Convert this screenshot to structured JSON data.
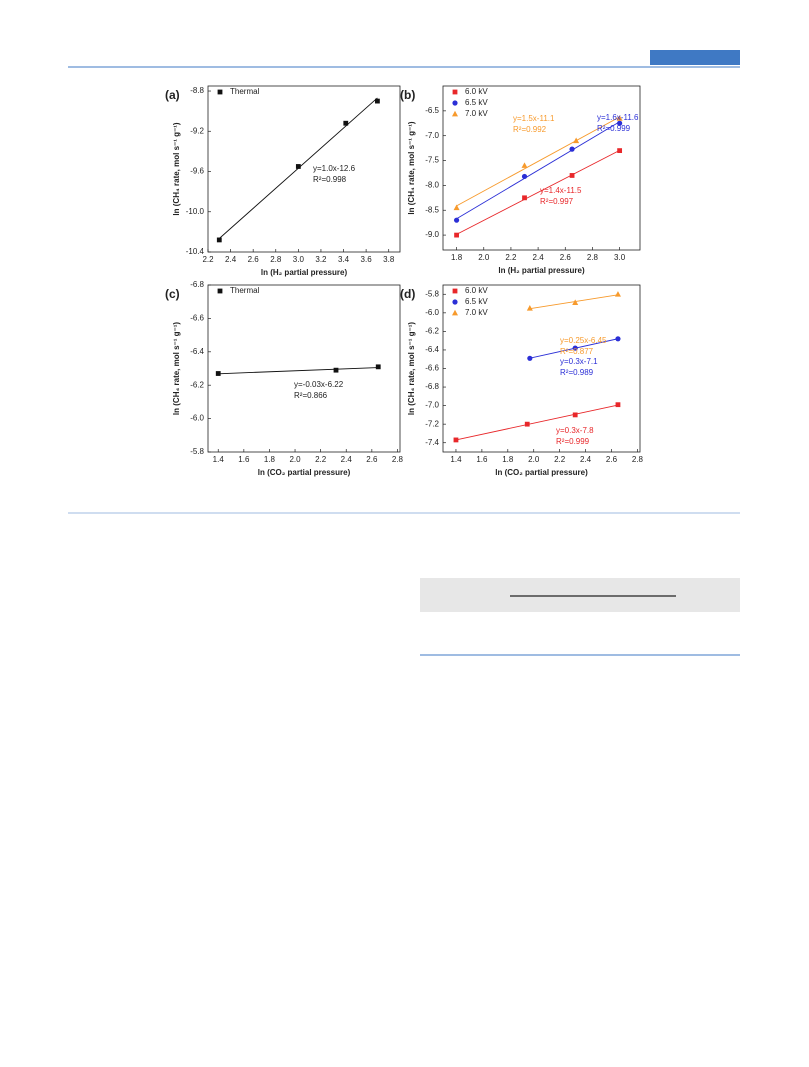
{
  "chart_data": [
    {
      "type": "scatter",
      "panel_label": "(a)",
      "xlabel": "ln (H₂ partial pressure)",
      "ylabel": "ln (CH₄ rate, mol s⁻¹ g⁻¹)",
      "xlim": [
        2.2,
        3.9
      ],
      "ylim": [
        -10.4,
        -8.75
      ],
      "xticks": [
        2.2,
        2.4,
        2.6,
        2.8,
        {
          "value": 3,
          "label": "3.0"
        },
        3.2,
        3.4,
        3.6,
        3.8
      ],
      "yticks": [
        -10.4,
        {
          "value": -10,
          "label": "-10.0"
        },
        -9.6,
        -9.2,
        -8.8
      ],
      "series": [
        {
          "name": "Thermal",
          "color": "#111111",
          "marker": "square",
          "x": [
            2.3,
            3.0,
            3.42,
            3.7
          ],
          "values": [
            -10.28,
            -9.55,
            -9.12,
            -8.9
          ]
        }
      ],
      "annotations": [
        {
          "lines": [
            "y=1.0x-12.6",
            "R²=0.998"
          ],
          "color": "#222222"
        }
      ]
    },
    {
      "type": "scatter",
      "panel_label": "(b)",
      "xlabel": "ln (H₂ partial pressure)",
      "ylabel": "ln (CH₄ rate, mol s⁻¹ g⁻¹)",
      "xlim": [
        1.7,
        3.15
      ],
      "ylim": [
        -9.3,
        -6.0
      ],
      "xticks": [
        1.8,
        {
          "value": 2,
          "label": "2.0"
        },
        2.2,
        2.4,
        2.6,
        2.8,
        {
          "value": 3,
          "label": "3.0"
        }
      ],
      "yticks": [
        {
          "value": -9,
          "label": "-9.0"
        },
        -8.5,
        {
          "value": -8,
          "label": "-8.0"
        },
        -7.5,
        {
          "value": -7,
          "label": "-7.0"
        },
        -6.5
      ],
      "series": [
        {
          "name": "6.0 kV",
          "color": "#e8272a",
          "marker": "square",
          "x": [
            1.8,
            2.3,
            2.65,
            3.0
          ],
          "values": [
            -9.0,
            -8.25,
            -7.8,
            -7.3
          ]
        },
        {
          "name": "6.5 kV",
          "color": "#2b2fd6",
          "marker": "circle",
          "x": [
            1.8,
            2.3,
            2.65,
            3.0
          ],
          "values": [
            -8.7,
            -7.82,
            -7.27,
            -6.75
          ]
        },
        {
          "name": "7.0 kV",
          "color": "#f79a2c",
          "marker": "triangle",
          "x": [
            1.8,
            2.3,
            2.68,
            3.0
          ],
          "values": [
            -8.45,
            -7.6,
            -7.1,
            -6.65
          ]
        }
      ],
      "annotations": [
        {
          "lines": [
            "y=1.4x-11.5",
            "R²=0.997"
          ],
          "color": "#e8272a"
        },
        {
          "lines": [
            "y=1.6x-11.6",
            "R²=0.999"
          ],
          "color": "#2b2fd6"
        },
        {
          "lines": [
            "y=1.5x-11.1",
            "R²=0.992"
          ],
          "color": "#f79a2c"
        }
      ]
    },
    {
      "type": "scatter",
      "panel_label": "(c)",
      "xlabel": "ln (CO₂ partial pressure)",
      "ylabel": "ln (CH₄ rate, mol s⁻¹ g⁻¹)",
      "xlim": [
        1.32,
        2.82
      ],
      "ylim": [
        -6.8,
        -5.8
      ],
      "y_inverted": true,
      "xticks": [
        1.4,
        1.6,
        1.8,
        {
          "value": 2,
          "label": "2.0"
        },
        2.2,
        2.4,
        2.6,
        2.8
      ],
      "yticks": [
        -6.8,
        -6.6,
        -6.4,
        -6.2,
        {
          "value": -6,
          "label": "-6.0"
        },
        -5.8
      ],
      "series": [
        {
          "name": "Thermal",
          "color": "#111111",
          "marker": "square",
          "x": [
            1.4,
            2.32,
            2.65
          ],
          "values": [
            -6.27,
            -6.29,
            -6.31
          ]
        }
      ],
      "annotations": [
        {
          "lines": [
            "y=-0.03x-6.22",
            "R²=0.866"
          ],
          "color": "#222222"
        }
      ]
    },
    {
      "type": "scatter",
      "panel_label": "(d)",
      "xlabel": "ln (CO₂ partial pressure)",
      "ylabel": "ln (CH₄ rate, mol s⁻¹ g⁻¹)",
      "xlim": [
        1.3,
        2.82
      ],
      "ylim": [
        -7.5,
        -5.7
      ],
      "xticks": [
        1.4,
        1.6,
        1.8,
        {
          "value": 2,
          "label": "2.0"
        },
        2.2,
        2.4,
        2.6,
        2.8
      ],
      "yticks": [
        -7.4,
        -7.2,
        {
          "value": -7,
          "label": "-7.0"
        },
        -6.8,
        -6.6,
        -6.4,
        -6.2,
        {
          "value": -6,
          "label": "-6.0"
        },
        -5.8
      ],
      "series": [
        {
          "name": "6.0 kV",
          "color": "#e8272a",
          "marker": "square",
          "x": [
            1.4,
            1.95,
            2.32,
            2.65
          ],
          "values": [
            -7.37,
            -7.2,
            -7.1,
            -6.99
          ]
        },
        {
          "name": "6.5 kV",
          "color": "#2b2fd6",
          "marker": "circle",
          "x": [
            1.97,
            2.32,
            2.65
          ],
          "values": [
            -6.49,
            -6.38,
            -6.28
          ]
        },
        {
          "name": "7.0 kV",
          "color": "#f79a2c",
          "marker": "triangle",
          "x": [
            1.97,
            2.32,
            2.65
          ],
          "values": [
            -5.95,
            -5.89,
            -5.8
          ]
        }
      ],
      "annotations": [
        {
          "lines": [
            "y=0.3x-7.8",
            "R²=0.999"
          ],
          "color": "#e8272a"
        },
        {
          "lines": [
            "y=0.3x-7.1",
            "R²=0.989"
          ],
          "color": "#2b2fd6"
        },
        {
          "lines": [
            "y=0.25x-6.45",
            "R²=0.877"
          ],
          "color": "#f79a2c"
        }
      ]
    }
  ]
}
